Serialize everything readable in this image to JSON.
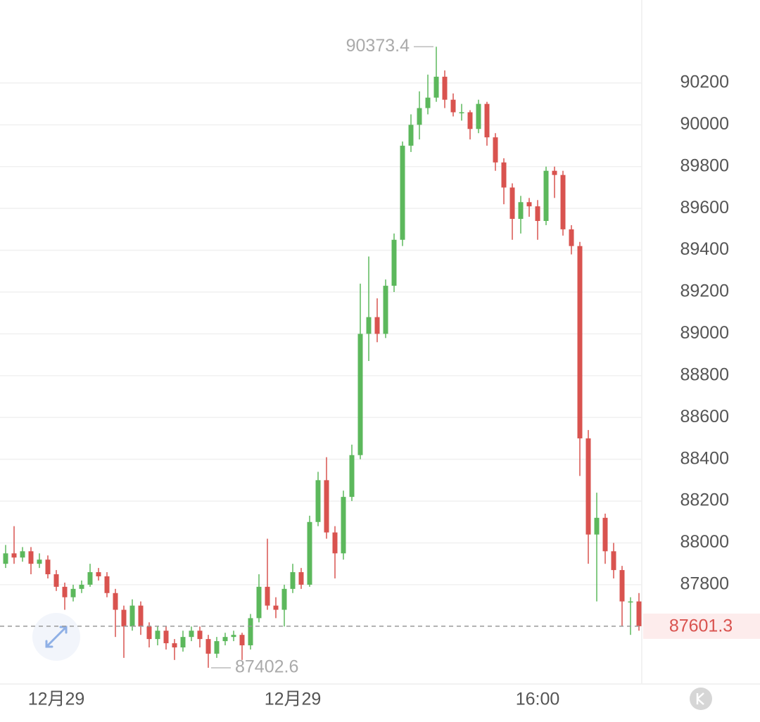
{
  "chart_data": {
    "type": "candlestick",
    "categories": [
      null,
      null,
      null,
      null,
      null,
      null,
      "12月29",
      null,
      null,
      null,
      null,
      null,
      null,
      null,
      null,
      null,
      null,
      null,
      null,
      null,
      null,
      null,
      null,
      null,
      null,
      null,
      null,
      null,
      null,
      null,
      null,
      null,
      null,
      null,
      "12月29",
      null,
      null,
      null,
      null,
      null,
      null,
      null,
      null,
      null,
      null,
      null,
      null,
      null,
      null,
      null,
      null,
      null,
      null,
      null,
      null,
      null,
      null,
      null,
      null,
      null,
      null,
      null,
      null,
      "16:00",
      null,
      null,
      null,
      null,
      null,
      null,
      null,
      null,
      null,
      null,
      null,
      null
    ],
    "open": [
      87900,
      87950,
      87930,
      87960,
      87900,
      87920,
      87850,
      87790,
      87740,
      87780,
      87800,
      87860,
      87840,
      87760,
      87680,
      87600,
      87700,
      87600,
      87540,
      87580,
      87520,
      87500,
      87550,
      87580,
      87540,
      87470,
      87530,
      87550,
      87560,
      87510,
      87640,
      87790,
      87700,
      87680,
      87780,
      87860,
      87800,
      88100,
      88300,
      88050,
      87950,
      88220,
      88420,
      89000,
      89080,
      89000,
      89230,
      89450,
      89900,
      90000,
      90080,
      90130,
      90230,
      90120,
      90060,
      90060,
      89980,
      90100,
      89940,
      89820,
      89700,
      89550,
      89630,
      89610,
      89540,
      89780,
      89760,
      89500,
      89420,
      88500,
      88040,
      88120,
      87960,
      87870,
      87720,
      87720
    ],
    "high": [
      87990,
      88080,
      87980,
      87980,
      87950,
      87940,
      87870,
      87810,
      87800,
      87820,
      87900,
      87880,
      87860,
      87780,
      87700,
      87730,
      87720,
      87620,
      87600,
      87600,
      87540,
      87580,
      87600,
      87600,
      87560,
      87550,
      87570,
      87580,
      87570,
      87660,
      87850,
      88020,
      87740,
      87800,
      87900,
      87880,
      88130,
      88340,
      88410,
      88080,
      88250,
      88470,
      89240,
      89370,
      89170,
      89260,
      89480,
      89920,
      90050,
      90160,
      90240,
      90373.4,
      90260,
      90150,
      90100,
      90070,
      90120,
      90110,
      89960,
      89840,
      89720,
      89660,
      89650,
      89640,
      89800,
      89800,
      89780,
      89520,
      89440,
      88540,
      88240,
      88140,
      88000,
      87890,
      87740,
      87760
    ],
    "low": [
      87880,
      87900,
      87910,
      87850,
      87880,
      87830,
      87770,
      87680,
      87720,
      87760,
      87790,
      87820,
      87740,
      87550,
      87450,
      87580,
      87560,
      87500,
      87510,
      87490,
      87440,
      87480,
      87530,
      87500,
      87402.6,
      87450,
      87510,
      87530,
      87440,
      87490,
      87620,
      87680,
      87640,
      87600,
      87760,
      87780,
      87790,
      88080,
      88020,
      87830,
      87920,
      88200,
      88400,
      88870,
      88960,
      88980,
      89200,
      89420,
      89870,
      89930,
      90050,
      90110,
      90080,
      90040,
      90020,
      89930,
      89960,
      89900,
      89780,
      89620,
      89450,
      89480,
      89560,
      89450,
      89520,
      89650,
      89470,
      89380,
      88320,
      87900,
      87720,
      87900,
      87830,
      87600,
      87560,
      87580
    ],
    "close": [
      87950,
      87930,
      87960,
      87900,
      87920,
      87850,
      87790,
      87740,
      87780,
      87800,
      87860,
      87840,
      87760,
      87680,
      87600,
      87700,
      87600,
      87540,
      87580,
      87520,
      87500,
      87550,
      87580,
      87540,
      87470,
      87530,
      87550,
      87560,
      87510,
      87640,
      87790,
      87700,
      87680,
      87780,
      87860,
      87800,
      88100,
      88300,
      88050,
      87950,
      88220,
      88420,
      89000,
      89080,
      89000,
      89230,
      89450,
      89900,
      90000,
      90080,
      90130,
      90230,
      90120,
      90060,
      90060,
      89980,
      90100,
      89940,
      89820,
      89700,
      89550,
      89630,
      89610,
      89540,
      89780,
      89760,
      89500,
      89420,
      88500,
      88040,
      88120,
      87960,
      87870,
      87720,
      87720,
      87601.3
    ],
    "up_color": "#5cb85c",
    "down_color": "#d9534f",
    "ylim": [
      87325,
      90597
    ],
    "yticks": [
      87800,
      88000,
      88200,
      88400,
      88600,
      88800,
      89000,
      89200,
      89400,
      89600,
      89800,
      90000,
      90200
    ],
    "grid": true,
    "high_annotation": 90373.4,
    "low_annotation": 87402.6,
    "last_price": 87601.3
  }
}
